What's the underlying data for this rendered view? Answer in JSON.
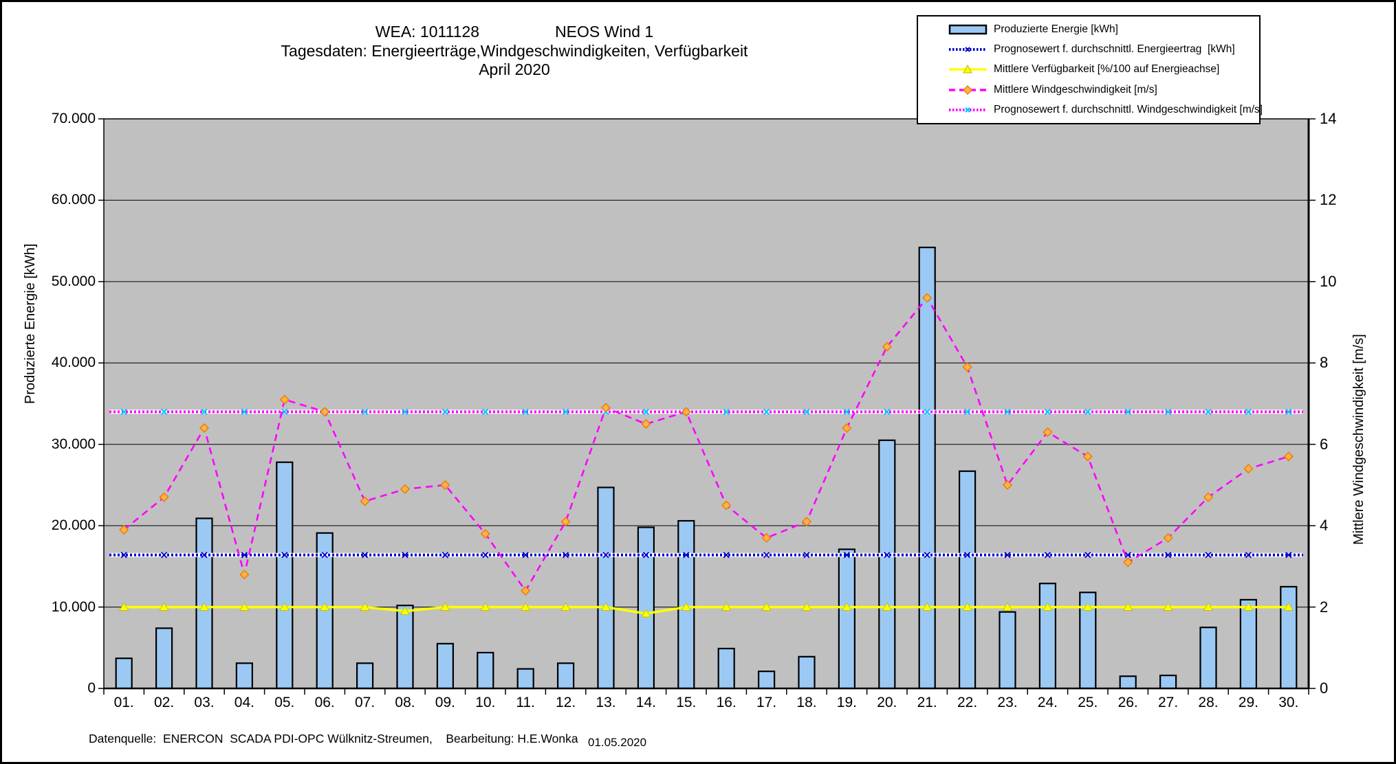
{
  "title": {
    "line1_left": "WEA: 1011128",
    "line1_right": "NEOS Wind 1",
    "line2": "Tagesdaten:  Energieerträge,Windgeschwindigkeiten,  Verfügbarkeit",
    "line3": "April 2020"
  },
  "axes": {
    "left_title": "Produzierte Energie [kWh]",
    "right_title": "Mittlere Windgeschwindigkeit [m/s]",
    "left_ticks": [
      "70.000",
      "60.000",
      "50.000",
      "40.000",
      "30.000",
      "20.000",
      "10.000",
      "0"
    ],
    "right_ticks": [
      "14",
      "12",
      "10",
      "8",
      "6",
      "4",
      "2",
      "0"
    ]
  },
  "footer": {
    "source": "Datenquelle:  ENERCON  SCADA PDI-OPC Wülknitz-Streumen,    Bearbeitung: H.E.Wonka",
    "date": "01.05.2020"
  },
  "colors": {
    "plot_bg": "#c0c0c0",
    "bar_fill": "#9cc9f4",
    "bar_stroke": "#000000",
    "grid": "#000000",
    "wind_line": "#ff00ff",
    "wind_marker_fill": "#ffb347",
    "wind_marker_stroke": "#e8820c",
    "availability_line": "#ffff00",
    "availability_marker_stroke": "#b8b800",
    "energy_forecast": "#0000cc",
    "wind_forecast": "#ff00ff",
    "wind_forecast_marker": "#00ccff"
  },
  "chart_data": {
    "type": "bar",
    "subtype": "combo-bar-line",
    "categories": [
      "01.",
      "02.",
      "03.",
      "04.",
      "05.",
      "06.",
      "07.",
      "08.",
      "09.",
      "10.",
      "11.",
      "12.",
      "13.",
      "14.",
      "15.",
      "16.",
      "17.",
      "18.",
      "19.",
      "20.",
      "21.",
      "22.",
      "23.",
      "24.",
      "25.",
      "26.",
      "27.",
      "28.",
      "29.",
      "30."
    ],
    "xlabel": "",
    "ylabel_left": "Produzierte Energie [kWh]",
    "ylabel_right": "Mittlere Windgeschwindigkeit [m/s]",
    "ylim_left": [
      0,
      70000
    ],
    "ylim_right": [
      0,
      14
    ],
    "grid": true,
    "legend_position": "top-right",
    "series": [
      {
        "name": "Produzierte Energie [kWh]",
        "type": "bar",
        "axis": "left",
        "values": [
          3700,
          7400,
          20900,
          3100,
          27800,
          19100,
          3100,
          10200,
          5500,
          4400,
          2400,
          3100,
          24700,
          19800,
          20600,
          4900,
          2100,
          3900,
          17100,
          30500,
          54200,
          26700,
          9400,
          12900,
          11800,
          1500,
          1600,
          7500,
          10900,
          12500
        ]
      },
      {
        "name": "Prognosewert f. durchschnittl. Energieertrag  [kWh]",
        "type": "line-dotted-constant",
        "axis": "left",
        "constant_value": 16400
      },
      {
        "name": "Mittlere Verfügbarkeit [%/100 auf Energieachse]",
        "type": "line",
        "axis": "left",
        "plot_scale_on_energy_axis": 10000,
        "values": [
          1.0,
          1.0,
          1.0,
          1.0,
          1.0,
          1.0,
          1.0,
          0.95,
          1.0,
          1.0,
          1.0,
          1.0,
          1.0,
          0.92,
          1.0,
          1.0,
          1.0,
          1.0,
          1.0,
          1.0,
          1.0,
          1.0,
          1.0,
          1.0,
          1.0,
          1.0,
          1.0,
          1.0,
          1.0,
          1.0
        ]
      },
      {
        "name": "Mittlere Windgeschwindigkeit [m/s]",
        "type": "line-dashed",
        "axis": "right",
        "values": [
          3.9,
          4.7,
          6.4,
          2.8,
          7.1,
          6.8,
          4.6,
          4.9,
          5.0,
          3.8,
          2.4,
          4.1,
          6.9,
          6.5,
          6.8,
          4.5,
          3.7,
          4.1,
          6.4,
          8.4,
          9.6,
          7.9,
          5.0,
          6.3,
          5.7,
          3.1,
          3.7,
          4.7,
          5.4,
          5.7
        ]
      },
      {
        "name": "Prognosewert f. durchschnittl. Windgeschwindigkeit [m/s]",
        "type": "line-dotted-constant",
        "axis": "right",
        "constant_value": 6.8
      }
    ]
  }
}
